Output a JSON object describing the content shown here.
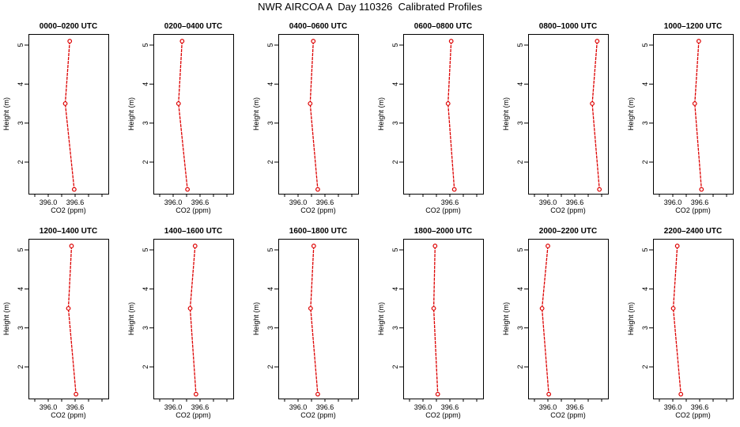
{
  "title": "NWR AIRCOA A  Day 110326  Calibrated Profiles",
  "colors": {
    "line": "#dd0000",
    "axis": "#000000",
    "background": "#ffffff"
  },
  "chart_data": [
    {
      "type": "line",
      "title": "0000–0200 UTC",
      "xlabel": "CO2 (ppm)",
      "ylabel": "Height (m)",
      "x": [
        396.48,
        396.38,
        396.58
      ],
      "y": [
        5.1,
        3.5,
        1.3
      ],
      "xticks": [
        "396.0",
        "396.6"
      ],
      "yticks": [
        "2",
        "3",
        "4",
        "5"
      ]
    },
    {
      "type": "line",
      "title": "0200–0400 UTC",
      "xlabel": "CO2 (ppm)",
      "ylabel": "Height (m)",
      "x": [
        396.2,
        396.12,
        396.32
      ],
      "y": [
        5.1,
        3.5,
        1.3
      ],
      "xticks": [
        "396.0",
        "396.6"
      ],
      "yticks": [
        "2",
        "3",
        "4",
        "5"
      ]
    },
    {
      "type": "line",
      "title": "0400–0600 UTC",
      "xlabel": "CO2 (ppm)",
      "ylabel": "Height (m)",
      "x": [
        396.34,
        396.27,
        396.44
      ],
      "y": [
        5.1,
        3.5,
        1.3
      ],
      "xticks": [
        "396.0",
        "396.6"
      ],
      "yticks": [
        "2",
        "3",
        "4",
        "5"
      ]
    },
    {
      "type": "line",
      "title": "0600–0800 UTC",
      "xlabel": "CO2 (ppm)",
      "ylabel": "Height (m)",
      "x": [
        396.63,
        396.56,
        396.7
      ],
      "y": [
        5.1,
        3.5,
        1.3
      ],
      "xticks": [
        "396.6"
      ],
      "yticks": [
        "2",
        "3",
        "4",
        "5"
      ]
    },
    {
      "type": "line",
      "title": "0800–1000 UTC",
      "xlabel": "CO2 (ppm)",
      "ylabel": "Height (m)",
      "x": [
        397.1,
        396.99,
        397.15
      ],
      "y": [
        5.1,
        3.5,
        1.3
      ],
      "xticks": [
        "396.0",
        "396.6"
      ],
      "yticks": [
        "2",
        "3",
        "4",
        "5"
      ]
    },
    {
      "type": "line",
      "title": "1000–1200 UTC",
      "xlabel": "CO2 (ppm)",
      "ylabel": "Height (m)",
      "x": [
        396.58,
        396.49,
        396.64
      ],
      "y": [
        5.1,
        3.5,
        1.3
      ],
      "xticks": [
        "396.0",
        "396.6"
      ],
      "yticks": [
        "2",
        "3",
        "4",
        "5"
      ]
    },
    {
      "type": "line",
      "title": "1200–1400 UTC",
      "xlabel": "CO2 (ppm)",
      "ylabel": "Height (m)",
      "x": [
        396.52,
        396.45,
        396.62
      ],
      "y": [
        5.1,
        3.5,
        1.3
      ],
      "xticks": [
        "396.0",
        "396.6"
      ],
      "yticks": [
        "2",
        "3",
        "4",
        "5"
      ]
    },
    {
      "type": "line",
      "title": "1400–1600 UTC",
      "xlabel": "CO2 (ppm)",
      "ylabel": "Height (m)",
      "x": [
        396.49,
        396.38,
        396.51
      ],
      "y": [
        5.1,
        3.5,
        1.3
      ],
      "xticks": [
        "396.0",
        "396.6"
      ],
      "yticks": [
        "2",
        "3",
        "4",
        "5"
      ]
    },
    {
      "type": "line",
      "title": "1600–1800 UTC",
      "xlabel": "CO2 (ppm)",
      "ylabel": "Height (m)",
      "x": [
        396.35,
        396.28,
        396.44
      ],
      "y": [
        5.1,
        3.5,
        1.3
      ],
      "xticks": [
        "396.0",
        "396.6"
      ],
      "yticks": [
        "2",
        "3",
        "4",
        "5"
      ]
    },
    {
      "type": "line",
      "title": "1800–2000 UTC",
      "xlabel": "CO2 (ppm)",
      "ylabel": "Height (m)",
      "x": [
        396.27,
        396.24,
        396.33
      ],
      "y": [
        5.1,
        3.5,
        1.3
      ],
      "xticks": [
        "396.0",
        "396.6"
      ],
      "yticks": [
        "2",
        "3",
        "4",
        "5"
      ]
    },
    {
      "type": "line",
      "title": "2000–2200 UTC",
      "xlabel": "CO2 (ppm)",
      "ylabel": "Height (m)",
      "x": [
        396.0,
        395.87,
        396.02
      ],
      "y": [
        5.1,
        3.5,
        1.3
      ],
      "xticks": [
        "396.0",
        "396.6"
      ],
      "yticks": [
        "2",
        "3",
        "4",
        "5"
      ]
    },
    {
      "type": "line",
      "title": "2200–2400 UTC",
      "xlabel": "CO2 (ppm)",
      "ylabel": "Height (m)",
      "x": [
        396.1,
        396.01,
        396.18
      ],
      "y": [
        5.1,
        3.5,
        1.3
      ],
      "xticks": [
        "396.0",
        "396.6"
      ],
      "yticks": [
        "2",
        "3",
        "4",
        "5"
      ]
    }
  ]
}
